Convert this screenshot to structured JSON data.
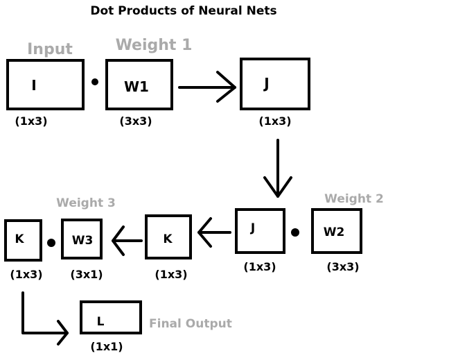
{
  "title": "Dot Products of Neural Nets",
  "input_label": "Input",
  "weight1_label": "Weight 1",
  "weight2_label": "Weight 2",
  "weight3_label": "Weight 3",
  "final_label": "Final Output",
  "nodes": {
    "I": {
      "label": "I",
      "dims": "(1x3)"
    },
    "W1": {
      "label": "W1",
      "dims": "(3x3)"
    },
    "J1": {
      "label": "J",
      "dims": "(1x3)"
    },
    "J2": {
      "label": "J",
      "dims": "(1x3)"
    },
    "W2": {
      "label": "W2",
      "dims": "(3x3)"
    },
    "K1": {
      "label": "K",
      "dims": "(1x3)"
    },
    "K2": {
      "label": "K",
      "dims": "(1x3)"
    },
    "W3": {
      "label": "W3",
      "dims": "(3x1)"
    },
    "L": {
      "label": "L",
      "dims": "(1x1)"
    }
  }
}
